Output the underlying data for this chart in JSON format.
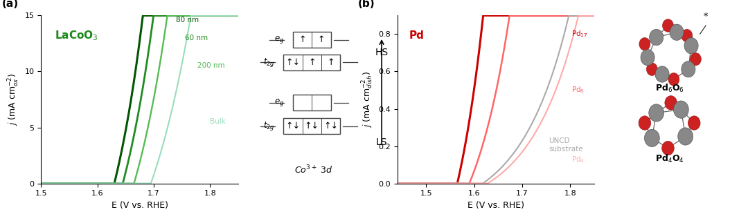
{
  "background": "#ffffff",
  "panel_a": {
    "xlabel": "E (V vs. RHE)",
    "ylabel": "$j$ (mA cm$^{-2}_{ox}$)",
    "xlim": [
      1.5,
      1.85
    ],
    "ylim": [
      0,
      15
    ],
    "yticks": [
      0,
      5,
      10,
      15
    ],
    "xticks": [
      1.5,
      1.6,
      1.7,
      1.8
    ],
    "label_text": "LaCoO$_3$",
    "label_color": "#1a8a1a",
    "curves": [
      {
        "color": "#005500",
        "lw": 2.2,
        "onset": 1.63,
        "k": 14,
        "ann": "80 nm",
        "ann_x": 1.74,
        "ann_y": 14.6
      },
      {
        "color": "#228B22",
        "lw": 2.0,
        "onset": 1.645,
        "k": 13,
        "ann": "60 nm",
        "ann_x": 1.755,
        "ann_y": 13.0
      },
      {
        "color": "#55bb55",
        "lw": 1.7,
        "onset": 1.665,
        "k": 12,
        "ann": "200 nm",
        "ann_x": 1.777,
        "ann_y": 10.5
      },
      {
        "color": "#99ddbb",
        "lw": 1.5,
        "onset": 1.695,
        "k": 10,
        "ann": "Bulk",
        "ann_x": 1.8,
        "ann_y": 5.5
      }
    ]
  },
  "panel_b": {
    "xlabel": "E (V vs. RHE)",
    "ylabel": "$j$ (mA cm$^{-2}_{dish}$)",
    "xlim": [
      1.44,
      1.85
    ],
    "ylim": [
      0,
      0.9
    ],
    "yticks": [
      0.0,
      0.2,
      0.4,
      0.6,
      0.8
    ],
    "xticks": [
      1.5,
      1.6,
      1.7,
      1.8
    ],
    "label_text": "Pd",
    "label_color": "#cc0000",
    "curves": [
      {
        "color": "#cc0000",
        "lw": 2.2,
        "onset": 1.565,
        "k": 14,
        "scale": 0.8,
        "ann": "Pd$_{17}$",
        "ann_x": 1.802,
        "ann_y": 0.8
      },
      {
        "color": "#ff6666",
        "lw": 1.8,
        "onset": 1.59,
        "k": 12,
        "scale": 0.52,
        "ann": "Pd$_6$",
        "ann_x": 1.802,
        "ann_y": 0.5
      },
      {
        "color": "#aaaaaa",
        "lw": 1.5,
        "onset": 1.618,
        "k": 10,
        "scale": 0.18,
        "ann": "UNCD\nsubstrate",
        "ann_x": 1.755,
        "ann_y": 0.205
      },
      {
        "color": "#ffaaaa",
        "lw": 1.5,
        "onset": 1.628,
        "k": 10,
        "scale": 0.16,
        "ann": "Pd$_4$",
        "ann_x": 1.802,
        "ann_y": 0.128
      }
    ]
  },
  "orbital": {
    "hs_eg": [
      "↑",
      "↑"
    ],
    "hs_t2g": [
      "↑↓",
      "↑",
      "↑"
    ],
    "ls_eg": [
      "",
      ""
    ],
    "ls_t2g": [
      "↑↓",
      "↑↓",
      "↑↓"
    ]
  },
  "mol": {
    "pd6o6_label": "Pd$_6$O$_6$",
    "pd4o4_label": "Pd$_4$O$_4$",
    "pd_color": "#888888",
    "o_color": "#cc2222"
  }
}
